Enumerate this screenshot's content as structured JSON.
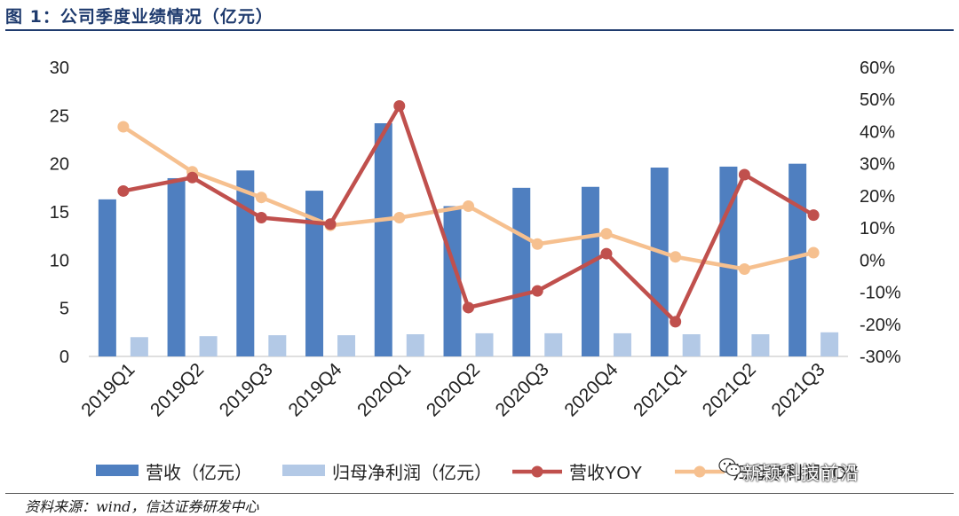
{
  "figure": {
    "title": "图 1：公司季度业绩情况（亿元）",
    "source": "资料来源：wind，信达证券研发中心",
    "watermark": "新颖科技前沿"
  },
  "colors": {
    "revenue_bar": "#4f7fc0",
    "profit_bar": "#b3c9e6",
    "revenue_yoy": "#c0504d",
    "profit_yoy": "#f6c08f"
  },
  "chart_data": {
    "type": "bar",
    "categories": [
      "2019Q1",
      "2019Q2",
      "2019Q3",
      "2019Q4",
      "2020Q1",
      "2020Q2",
      "2020Q3",
      "2020Q4",
      "2021Q1",
      "2021Q2",
      "2021Q3"
    ],
    "series": [
      {
        "name": "营收（亿元）",
        "type": "bar",
        "axis": "left",
        "values": [
          16.3,
          18.5,
          19.3,
          17.2,
          24.2,
          15.6,
          17.5,
          17.6,
          19.6,
          19.7,
          20.0
        ]
      },
      {
        "name": "归母净利润（亿元）",
        "type": "bar",
        "axis": "left",
        "values": [
          2.0,
          2.1,
          2.2,
          2.2,
          2.3,
          2.4,
          2.4,
          2.4,
          2.3,
          2.3,
          2.5
        ]
      },
      {
        "name": "营收YOY",
        "type": "line",
        "axis": "right",
        "values": [
          21.5,
          25.7,
          13.2,
          11.2,
          48.0,
          -14.8,
          -9.6,
          2.0,
          -19.2,
          26.6,
          14.0
        ]
      },
      {
        "name": "归母净利润YOY",
        "type": "line",
        "axis": "right",
        "values": [
          41.5,
          27.5,
          19.5,
          10.8,
          13.2,
          16.8,
          5.0,
          8.2,
          1.0,
          -2.8,
          2.3
        ]
      }
    ],
    "y_left": {
      "ylim": [
        0,
        30
      ],
      "ticks": [
        "0",
        "5",
        "10",
        "15",
        "20",
        "25",
        "30"
      ]
    },
    "y_right": {
      "ylim": [
        -30,
        60
      ],
      "ticks": [
        "-30%",
        "-20%",
        "-10%",
        "0%",
        "10%",
        "20%",
        "30%",
        "40%",
        "50%",
        "60%"
      ]
    },
    "legend": {
      "position": "bottom",
      "items": [
        "营收（亿元）",
        "归母净利润（亿元）",
        "营收YOY",
        "归母净利润YOY"
      ]
    },
    "grid": false
  }
}
